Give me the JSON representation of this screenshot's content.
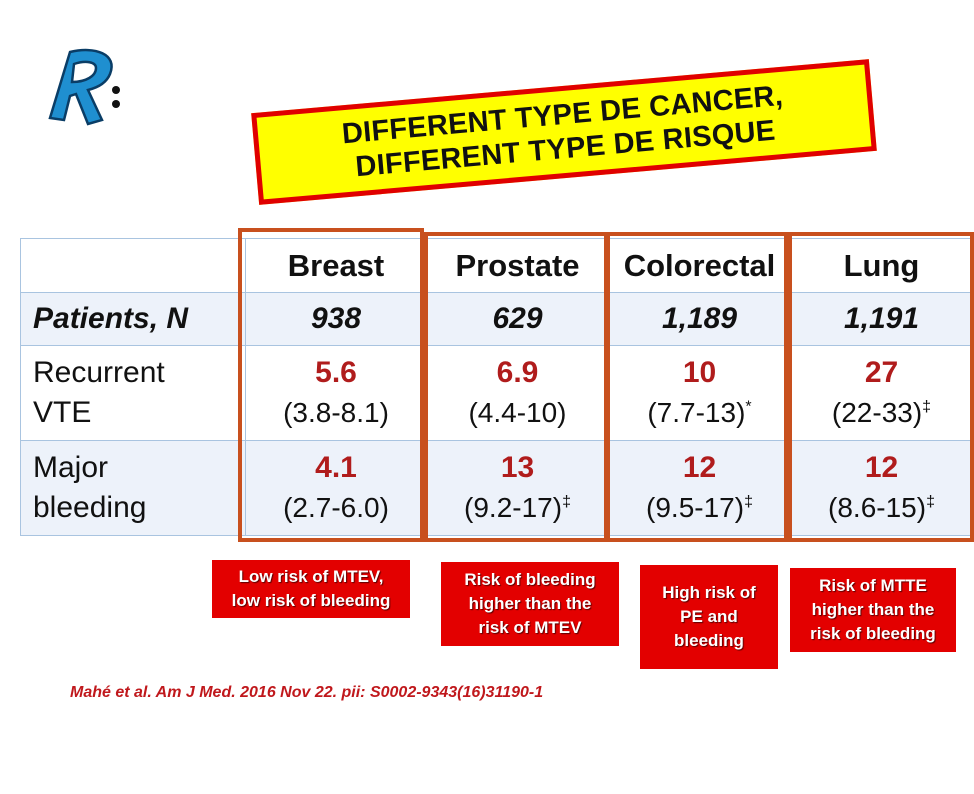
{
  "logo": {
    "icon": "r-logo-icon",
    "color": "#1f8fd0"
  },
  "banner": {
    "line1": "DIFFERENT TYPE DE CANCER,",
    "line2": "DIFFERENT TYPE DE RISQUE",
    "background": "#ffff00",
    "border": "#e00000"
  },
  "table": {
    "columns": [
      "Breast",
      "Prostate",
      "Colorectal",
      "Lung"
    ],
    "patients": {
      "label": "Patients, N",
      "values": [
        "938",
        "629",
        "1,189",
        "1,191"
      ]
    },
    "recurrent_vte": {
      "label_line1": "Recurrent",
      "label_line2": "VTE",
      "cells": [
        {
          "value": "5.6",
          "ci": "(3.8-8.1)",
          "mark": ""
        },
        {
          "value": "6.9",
          "ci": "(4.4-10)",
          "mark": ""
        },
        {
          "value": "10",
          "ci": "(7.7-13)",
          "mark": "*"
        },
        {
          "value": "27",
          "ci": "(22-33)",
          "mark": "‡"
        }
      ]
    },
    "major_bleeding": {
      "label_line1": "Major",
      "label_line2": "bleeding",
      "cells": [
        {
          "value": "4.1",
          "ci": "(2.7-6.0)",
          "mark": ""
        },
        {
          "value": "13",
          "ci": "(9.2-17)",
          "mark": "‡"
        },
        {
          "value": "12",
          "ci": "(9.5-17)",
          "mark": "‡"
        },
        {
          "value": "12",
          "ci": "(8.6-15)",
          "mark": "‡"
        }
      ]
    }
  },
  "notes": [
    {
      "lines": [
        "Low risk of MTEV,",
        "low risk of bleeding"
      ]
    },
    {
      "lines": [
        "Risk of bleeding",
        "higher than the",
        "risk of MTEV"
      ]
    },
    {
      "lines": [
        "High risk of",
        "PE and",
        "bleeding"
      ]
    },
    {
      "lines": [
        "Risk of MTTE",
        "higher than the",
        "risk of bleeding"
      ]
    }
  ],
  "citation": "Mahé et al. Am J Med. 2016 Nov 22. pii: S0002-9343(16)31190-1",
  "colors": {
    "value_red": "#b01c1c",
    "box_orange": "#c8501e",
    "note_red": "#e30000"
  }
}
